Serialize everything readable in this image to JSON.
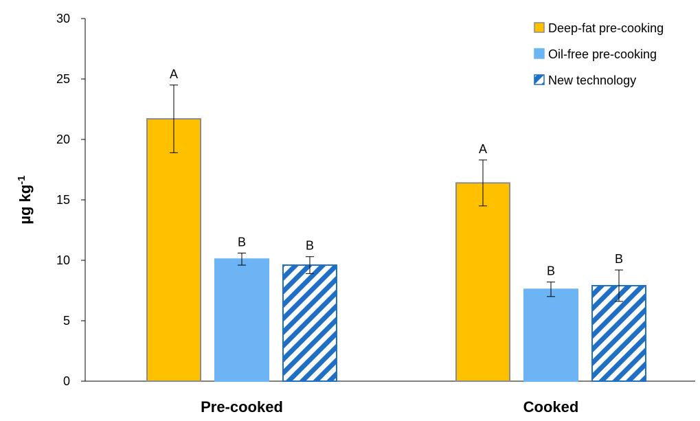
{
  "chart_data": {
    "type": "bar",
    "categories": [
      "Pre-cooked",
      "Cooked"
    ],
    "ylabel": {
      "main": "µg  kg",
      "superscript": "-1"
    },
    "ylim": [
      0,
      30
    ],
    "yticks": [
      0,
      5,
      10,
      15,
      20,
      25,
      30
    ],
    "grid": false,
    "legend_position": "top-right",
    "series": [
      {
        "name": "Deep-fat pre-cooking",
        "values": [
          21.7,
          16.4
        ],
        "errors": [
          2.8,
          1.9
        ],
        "significance": [
          "A",
          "A"
        ],
        "color": "#FFC000",
        "pattern": "solid"
      },
      {
        "name": "Oil-free pre-cooking",
        "values": [
          10.1,
          7.6
        ],
        "errors": [
          0.5,
          0.6
        ],
        "significance": [
          "B",
          "B"
        ],
        "color": "#6CB4F4",
        "pattern": "solid"
      },
      {
        "name": "New technology",
        "values": [
          9.6,
          7.9
        ],
        "errors": [
          0.7,
          1.3
        ],
        "significance": [
          "B",
          "B"
        ],
        "color": "#1F6FC4",
        "pattern": "diagonal-stripes"
      }
    ]
  }
}
